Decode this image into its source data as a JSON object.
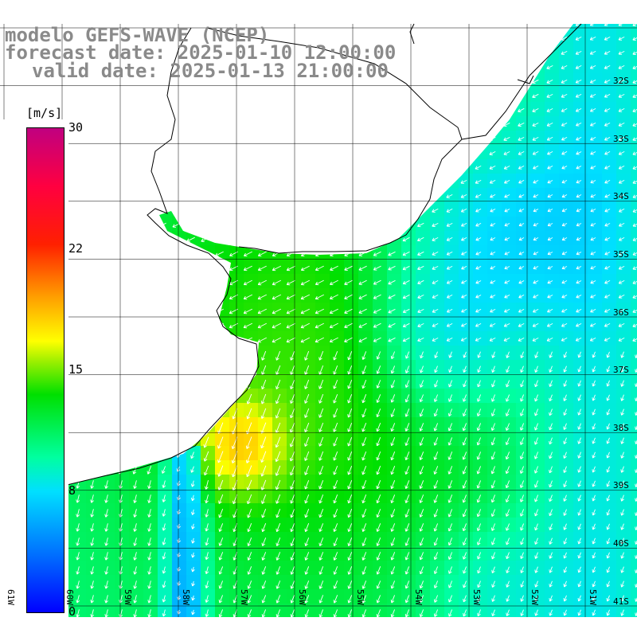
{
  "title": {
    "line1": "modelo GEFS-WAVE (NCEP)",
    "line2": "forecast date: 2025-01-10 12:00:00",
    "line3": "valid date: 2025-01-13 21:00:00"
  },
  "colorbar": {
    "unit": "[m/s]",
    "ticks": [
      "30",
      "22",
      "15",
      "8",
      "0"
    ],
    "range": [
      0,
      30
    ],
    "colors": [
      "#0000ff",
      "#00e0ff",
      "#00e000",
      "#ffff00",
      "#ff2000",
      "#c00080"
    ]
  },
  "map": {
    "land_color": "#ffffff",
    "grid_color": "#000000",
    "coast_color": "#000000",
    "arrow_color": "#ffffff",
    "lat_labels": [
      "32S",
      "33S",
      "34S",
      "35S",
      "36S",
      "37S",
      "38S",
      "39S",
      "40S",
      "41S"
    ],
    "lon_labels": [
      "61W",
      "60W",
      "59W",
      "58W",
      "57W",
      "56W",
      "55W",
      "54W",
      "53W",
      "52W",
      "51W"
    ]
  }
}
